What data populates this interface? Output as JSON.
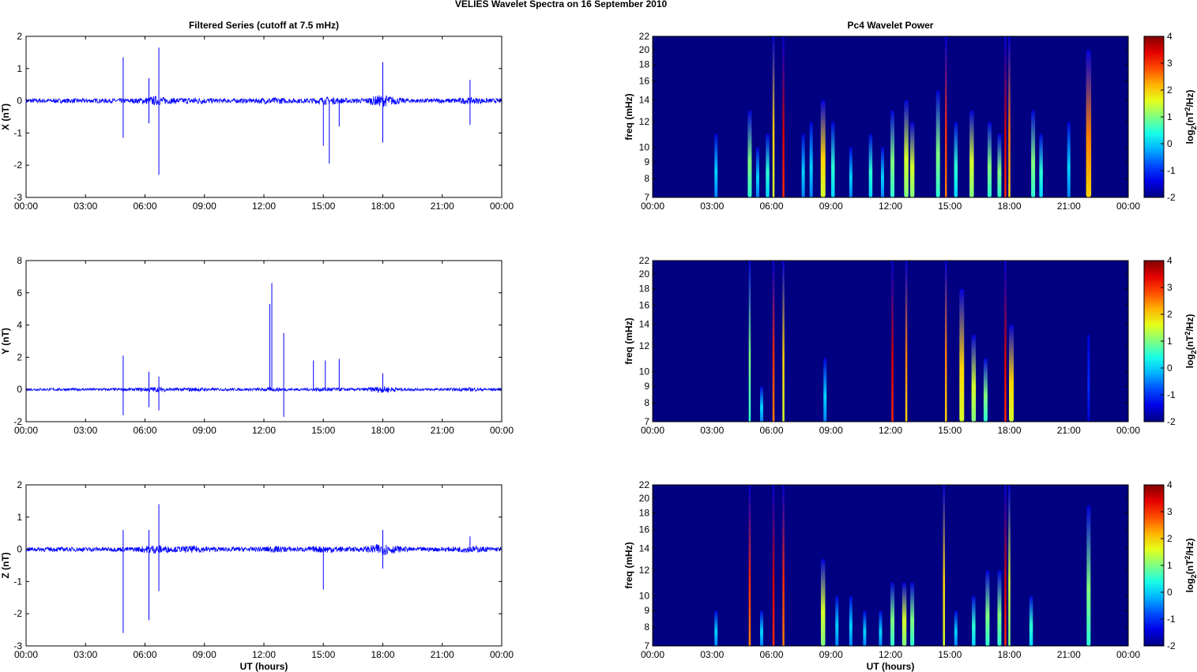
{
  "chart_data": {
    "type": "line",
    "title": "VELIES Wavelet Spectra on 16 September 2010",
    "left_title": "Filtered Series (cutoff at 7.5 mHz)",
    "right_title": "Pc4 Wavelet Power",
    "xlabel": "UT (hours)",
    "xlim": [
      0,
      24
    ],
    "xticks": [
      "00:00",
      "03:00",
      "06:00",
      "09:00",
      "12:00",
      "15:00",
      "18:00",
      "21:00",
      "00:00"
    ],
    "freq_label": "freq (mHz)",
    "freq_ticks": [
      7,
      8,
      9,
      10,
      12,
      14,
      16,
      18,
      20,
      22
    ],
    "freq_range": [
      7,
      22
    ],
    "colorbar": {
      "label": "log2(nT2/Hz)",
      "range": [
        -2,
        4
      ],
      "ticks": [
        "4",
        "3",
        "2",
        "1",
        "0",
        "-1",
        "-2"
      ]
    },
    "line_color": "#0000ff",
    "panels": [
      {
        "component": "X",
        "ylabel": "X (nT)",
        "ylim": [
          -3,
          2
        ],
        "yticks": [
          "2",
          "1",
          "0",
          "-1",
          "-2",
          "-3"
        ],
        "noise": 0.07,
        "spikes": [
          [
            4.9,
            1.35
          ],
          [
            4.9,
            -1.15
          ],
          [
            6.2,
            0.7
          ],
          [
            6.2,
            -0.7
          ],
          [
            6.7,
            1.65
          ],
          [
            6.7,
            -2.3
          ],
          [
            15.0,
            -1.4
          ],
          [
            15.3,
            -1.95
          ],
          [
            15.8,
            -0.8
          ],
          [
            18.0,
            1.2
          ],
          [
            18.0,
            -1.3
          ],
          [
            22.4,
            0.65
          ],
          [
            22.4,
            -0.75
          ]
        ],
        "events": [
          [
            3.2,
            0,
            11
          ],
          [
            4.9,
            1,
            13
          ],
          [
            5.3,
            0,
            10
          ],
          [
            5.8,
            0.5,
            11
          ],
          [
            6.1,
            2,
            22
          ],
          [
            6.6,
            3.5,
            22
          ],
          [
            7.6,
            0,
            11
          ],
          [
            8.0,
            0,
            12
          ],
          [
            8.6,
            2,
            14
          ],
          [
            9.1,
            0.5,
            12
          ],
          [
            10.0,
            0,
            10
          ],
          [
            11.0,
            0.5,
            11
          ],
          [
            11.6,
            0,
            10
          ],
          [
            12.1,
            1,
            13
          ],
          [
            12.8,
            1.5,
            14
          ],
          [
            13.1,
            1.5,
            12
          ],
          [
            14.4,
            1,
            15
          ],
          [
            14.8,
            3,
            22
          ],
          [
            15.3,
            0.5,
            12
          ],
          [
            16.1,
            1.5,
            13
          ],
          [
            17.0,
            1,
            12
          ],
          [
            17.5,
            1,
            11
          ],
          [
            17.8,
            3.5,
            22
          ],
          [
            18.0,
            2.5,
            22
          ],
          [
            19.2,
            1,
            13
          ],
          [
            19.6,
            0.5,
            11
          ],
          [
            21.0,
            0,
            12
          ],
          [
            22.0,
            2.5,
            20
          ]
        ]
      },
      {
        "component": "Y",
        "ylabel": "Y (nT)",
        "ylim": [
          -2,
          8
        ],
        "yticks": [
          "8",
          "6",
          "4",
          "2",
          "0",
          "-2"
        ],
        "noise": 0.08,
        "spikes": [
          [
            4.9,
            2.1
          ],
          [
            4.9,
            -1.6
          ],
          [
            6.2,
            1.1
          ],
          [
            6.2,
            -1.1
          ],
          [
            6.7,
            0.8
          ],
          [
            6.7,
            -1.3
          ],
          [
            12.3,
            5.3
          ],
          [
            12.4,
            6.6
          ],
          [
            13.0,
            3.5
          ],
          [
            13.0,
            -1.7
          ],
          [
            14.5,
            1.8
          ],
          [
            15.1,
            1.8
          ],
          [
            15.8,
            1.9
          ],
          [
            18.0,
            1.0
          ]
        ],
        "events": [
          [
            4.9,
            1,
            22
          ],
          [
            5.5,
            0,
            9
          ],
          [
            6.1,
            3,
            22
          ],
          [
            6.6,
            2,
            22
          ],
          [
            8.7,
            0,
            11
          ],
          [
            12.1,
            3.5,
            22
          ],
          [
            12.8,
            2.5,
            22
          ],
          [
            14.8,
            2.5,
            22
          ],
          [
            15.6,
            2,
            18
          ],
          [
            16.2,
            1.5,
            13
          ],
          [
            16.8,
            1,
            11
          ],
          [
            17.8,
            3.5,
            22
          ],
          [
            18.1,
            2,
            14
          ],
          [
            22.0,
            -1,
            13
          ]
        ]
      },
      {
        "component": "Z",
        "ylabel": "Z (nT)",
        "ylim": [
          -3,
          2
        ],
        "yticks": [
          "2",
          "1",
          "0",
          "-1",
          "-2",
          "-3"
        ],
        "noise": 0.07,
        "spikes": [
          [
            4.9,
            0.6
          ],
          [
            4.9,
            -2.6
          ],
          [
            6.2,
            0.6
          ],
          [
            6.2,
            -2.2
          ],
          [
            6.7,
            1.4
          ],
          [
            6.7,
            -1.3
          ],
          [
            15.0,
            -1.25
          ],
          [
            18.0,
            0.6
          ],
          [
            18.0,
            -0.6
          ],
          [
            22.4,
            0.4
          ]
        ],
        "events": [
          [
            3.2,
            0,
            9
          ],
          [
            4.9,
            3,
            22
          ],
          [
            5.5,
            0,
            9
          ],
          [
            6.1,
            3.5,
            22
          ],
          [
            6.6,
            3,
            22
          ],
          [
            8.6,
            1.5,
            13
          ],
          [
            9.3,
            0,
            10
          ],
          [
            10.0,
            0,
            10
          ],
          [
            10.7,
            0,
            9
          ],
          [
            11.5,
            0,
            9
          ],
          [
            12.1,
            1,
            11
          ],
          [
            12.7,
            1.5,
            11
          ],
          [
            13.1,
            1,
            11
          ],
          [
            14.7,
            2,
            22
          ],
          [
            15.3,
            0,
            9
          ],
          [
            16.2,
            0.5,
            10
          ],
          [
            16.9,
            1,
            12
          ],
          [
            17.5,
            1,
            12
          ],
          [
            17.8,
            3.5,
            22
          ],
          [
            18.0,
            1.5,
            22
          ],
          [
            19.1,
            0.5,
            10
          ],
          [
            22.0,
            1,
            19
          ]
        ]
      }
    ]
  }
}
